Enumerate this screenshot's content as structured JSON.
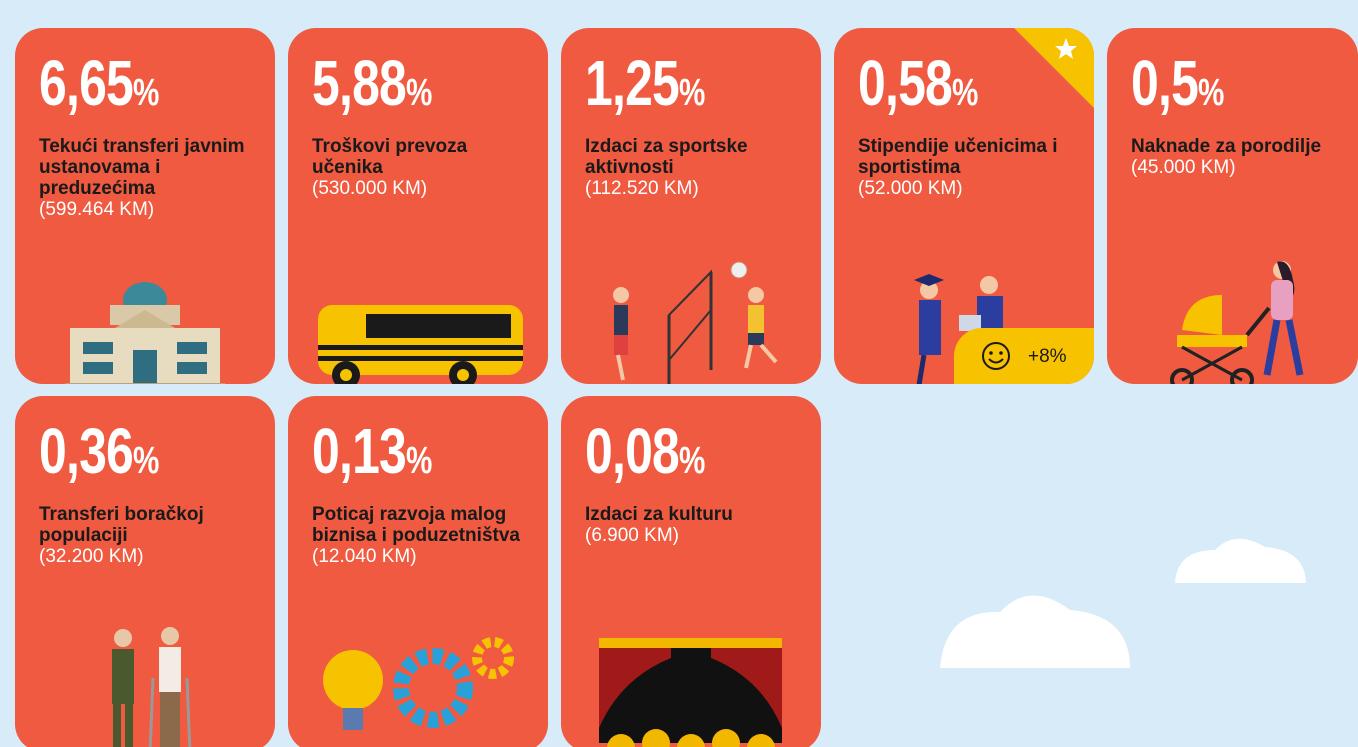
{
  "cards": [
    {
      "percent": "6,65",
      "unit": "%",
      "label": "Tekući transferi javnim ustanovama i preduzećima",
      "amount": "(599.464 KM)"
    },
    {
      "percent": "5,88",
      "unit": "%",
      "label": "Troškovi prevoza učenika",
      "amount": "(530.000 KM)"
    },
    {
      "percent": "1,25",
      "unit": "%",
      "label": "Izdaci za sportske aktivnosti",
      "amount": "(112.520 KM)"
    },
    {
      "percent": "0,58",
      "unit": "%",
      "label": "Stipendije učenicima i sportistima",
      "amount": "(52.000 KM)",
      "badge": "+8%"
    },
    {
      "percent": "0,5",
      "unit": "%",
      "label": "Naknade za porodilje",
      "amount": "(45.000 KM)"
    },
    {
      "percent": "0,36",
      "unit": "%",
      "label": "Transferi boračkoj populaciji",
      "amount": "(32.200 KM)"
    },
    {
      "percent": "0,13",
      "unit": "%",
      "label": "Poticaj razvoja malog biznisa i poduzetništva",
      "amount": "(12.040 KM)"
    },
    {
      "percent": "0,08",
      "unit": "%",
      "label": "Izdaci za kulturu",
      "amount": "(6.900 KM)"
    }
  ]
}
